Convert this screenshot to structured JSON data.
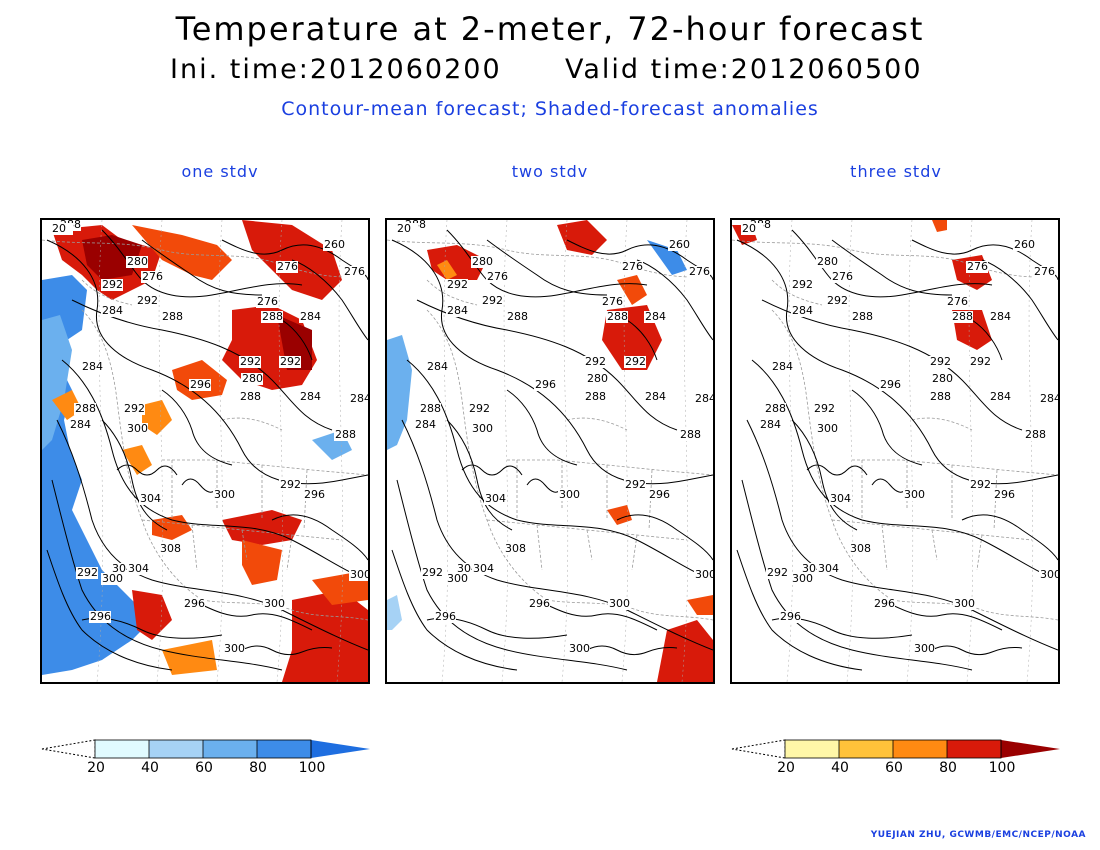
{
  "title": "Temperature at 2-meter, 72-hour forecast",
  "subtitle": {
    "ini": "Ini. time:2012060200",
    "valid": "Valid time:2012060500"
  },
  "note": "Contour-mean forecast; Shaded-forecast anomalies",
  "panels": [
    {
      "title": "one stdv",
      "shading": "strong"
    },
    {
      "title": "two stdv",
      "shading": "medium"
    },
    {
      "title": "three stdv",
      "shading": "light"
    }
  ],
  "contour_labels": [
    "288",
    "280",
    "276",
    "276",
    "260",
    "276",
    "292",
    "292",
    "284",
    "284",
    "288",
    "276",
    "288",
    "284",
    "292",
    "292",
    "280",
    "284",
    "296",
    "288",
    "288",
    "292",
    "284",
    "300",
    "288",
    "284",
    "292",
    "296",
    "304",
    "300",
    "308",
    "304",
    "292",
    "300",
    "304",
    "300",
    "296",
    "296",
    "300",
    "300",
    "20"
  ],
  "colorbars": {
    "negative": {
      "ticks": [
        "20",
        "40",
        "60",
        "80",
        "100"
      ],
      "colors": [
        "#e1fbff",
        "#a6d2f5",
        "#6bb0ee",
        "#3d8ce8",
        "#1e6ee0"
      ]
    },
    "positive": {
      "ticks": [
        "20",
        "40",
        "60",
        "80",
        "100"
      ],
      "colors": [
        "#fff7a8",
        "#ffc23a",
        "#ff8a12",
        "#f24a0a",
        "#d81a0a",
        "#9a0000"
      ]
    }
  },
  "credit": "YUEJIAN ZHU, GCWMB/EMC/NCEP/NOAA"
}
